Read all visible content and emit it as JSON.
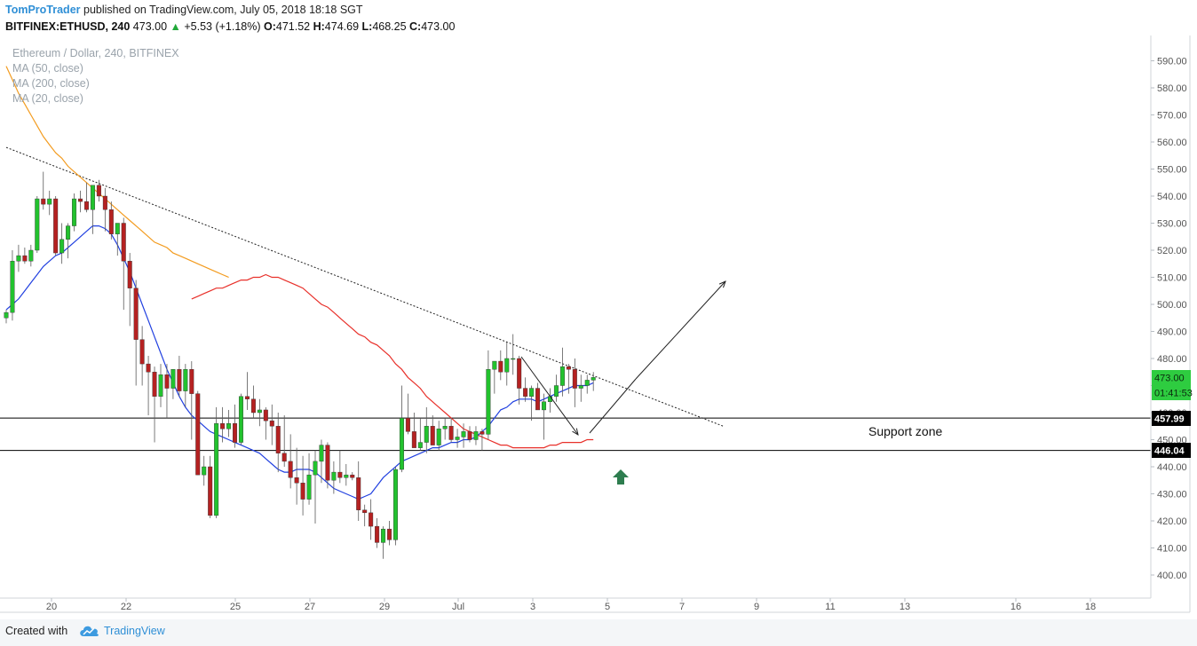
{
  "header": {
    "author": "TomProTrader",
    "published": " published on TradingView.com, July 05, 2018 18:18 SGT",
    "symbol": "BITFINEX:ETHUSD, 240",
    "last": " 473.00 ",
    "change_arrow": "▲",
    "change": " +5.53 (+1.18%)",
    "o_label": " O:",
    "o_value": "471.52",
    "h_label": " H:",
    "h_value": "474.69",
    "l_label": " L:",
    "l_value": "468.25",
    "c_label": " C:",
    "c_value": "473.00"
  },
  "legend": {
    "title": "Ethereum / Dollar, 240, BITFINEX",
    "ma50": "MA (50, close)",
    "ma200": "MA (200, close)",
    "ma20": "MA (20, close)"
  },
  "annotations": {
    "support_label": "Support zone"
  },
  "price_labels": {
    "current": "473.00",
    "countdown": "01:41:53",
    "support_top": "457.99",
    "support_bottom": "446.04"
  },
  "footer": {
    "created_with": "Created with",
    "brand": "TradingView"
  },
  "colors": {
    "bull": "#22c22e",
    "bear": "#b52121",
    "ma20": "#2140e0",
    "ma50": "#e8302a",
    "ma200": "#f39c20",
    "price_badge": "#2ecc40",
    "arrow_green": "#2e7d4f"
  },
  "chart_data": {
    "type": "candlestick",
    "y_axis": {
      "range": [
        394,
        596
      ],
      "ticks": [
        "590.00",
        "580.00",
        "570.00",
        "560.00",
        "550.00",
        "540.00",
        "530.00",
        "520.00",
        "510.00",
        "500.00",
        "490.00",
        "480.00",
        "470.00",
        "460.00",
        "450.00",
        "440.00",
        "430.00",
        "420.00",
        "410.00",
        "400.00"
      ]
    },
    "x_axis": {
      "ticks": [
        "20",
        "22",
        "25",
        "27",
        "29",
        "Jul",
        "3",
        "5",
        "7",
        "9",
        "11",
        "13",
        "16",
        "18"
      ]
    },
    "candles": [
      [
        495,
        498,
        493,
        497
      ],
      [
        497,
        520,
        494,
        516
      ],
      [
        516,
        522,
        512,
        518
      ],
      [
        518,
        521,
        515,
        516
      ],
      [
        516,
        522,
        514,
        520
      ],
      [
        520,
        540,
        519,
        539
      ],
      [
        539,
        549,
        535,
        537
      ],
      [
        537,
        542,
        533,
        539
      ],
      [
        539,
        540,
        518,
        519
      ],
      [
        519,
        530,
        515,
        524
      ],
      [
        524,
        530,
        517,
        529
      ],
      [
        529,
        541,
        527,
        539
      ],
      [
        539,
        542,
        534,
        538
      ],
      [
        538,
        545,
        534,
        535
      ],
      [
        535,
        543,
        526,
        544
      ],
      [
        544,
        546,
        538,
        540
      ],
      [
        540,
        543,
        527,
        535
      ],
      [
        535,
        538,
        524,
        526
      ],
      [
        526,
        530,
        518,
        530
      ],
      [
        530,
        532,
        498,
        516
      ],
      [
        516,
        519,
        492,
        506
      ],
      [
        506,
        509,
        470,
        487
      ],
      [
        487,
        492,
        470,
        478
      ],
      [
        478,
        481,
        459,
        475
      ],
      [
        475,
        477,
        449,
        466
      ],
      [
        466,
        478,
        462,
        474
      ],
      [
        474,
        478,
        458,
        469
      ],
      [
        469,
        476,
        465,
        476
      ],
      [
        476,
        481,
        466,
        468
      ],
      [
        468,
        478,
        462,
        476
      ],
      [
        476,
        479,
        450,
        467
      ],
      [
        467,
        468,
        437,
        437
      ],
      [
        437,
        444,
        433,
        440
      ],
      [
        440,
        444,
        421,
        422
      ],
      [
        422,
        462,
        421,
        456
      ],
      [
        456,
        462,
        449,
        454
      ],
      [
        454,
        461,
        451,
        456
      ],
      [
        456,
        463,
        447,
        449
      ],
      [
        449,
        467,
        448,
        466
      ],
      [
        466,
        475,
        461,
        465
      ],
      [
        465,
        470,
        458,
        460
      ],
      [
        460,
        465,
        455,
        461
      ],
      [
        461,
        462,
        450,
        457
      ],
      [
        457,
        463,
        448,
        455
      ],
      [
        455,
        460,
        438,
        445
      ],
      [
        445,
        459,
        440,
        442
      ],
      [
        442,
        452,
        432,
        436
      ],
      [
        436,
        447,
        426,
        434
      ],
      [
        434,
        444,
        422,
        428
      ],
      [
        428,
        445,
        426,
        437
      ],
      [
        437,
        446,
        419,
        442
      ],
      [
        442,
        450,
        434,
        448
      ],
      [
        448,
        449,
        432,
        435
      ],
      [
        435,
        442,
        430,
        438
      ],
      [
        438,
        446,
        434,
        436
      ],
      [
        436,
        441,
        433,
        437
      ],
      [
        437,
        438,
        435,
        436
      ],
      [
        436,
        442,
        420,
        424
      ],
      [
        424,
        426,
        418,
        423
      ],
      [
        423,
        428,
        413,
        418
      ],
      [
        418,
        421,
        410,
        412
      ],
      [
        412,
        418,
        406,
        417
      ],
      [
        417,
        420,
        411,
        413
      ],
      [
        413,
        440,
        411,
        439
      ],
      [
        439,
        470,
        438,
        458
      ],
      [
        458,
        467,
        452,
        453
      ],
      [
        453,
        460,
        448,
        447
      ],
      [
        447,
        458,
        446,
        449
      ],
      [
        449,
        462,
        445,
        455
      ],
      [
        455,
        459,
        448,
        448
      ],
      [
        448,
        457,
        446,
        454
      ],
      [
        454,
        458,
        450,
        455
      ],
      [
        455,
        458,
        449,
        450
      ],
      [
        450,
        454,
        447,
        451
      ],
      [
        451,
        456,
        447,
        453
      ],
      [
        453,
        455,
        449,
        450
      ],
      [
        450,
        455,
        448,
        453
      ],
      [
        453,
        454,
        446,
        452
      ],
      [
        452,
        483,
        450,
        476
      ],
      [
        476,
        479,
        467,
        479
      ],
      [
        479,
        483,
        472,
        475
      ],
      [
        475,
        486,
        470,
        480
      ],
      [
        480,
        489,
        474,
        480
      ],
      [
        480,
        481,
        463,
        469
      ],
      [
        469,
        473,
        464,
        466
      ],
      [
        466,
        470,
        457,
        469
      ],
      [
        469,
        471,
        463,
        461
      ],
      [
        461,
        467,
        450,
        464
      ],
      [
        464,
        469,
        460,
        466
      ],
      [
        466,
        474,
        464,
        470
      ],
      [
        470,
        484,
        466,
        477
      ],
      [
        477,
        478,
        467,
        476
      ],
      [
        476,
        480,
        462,
        469
      ],
      [
        469,
        474,
        464,
        470
      ],
      [
        470,
        474,
        467,
        472
      ],
      [
        472,
        475,
        468,
        473
      ]
    ],
    "ma20": [
      498,
      500,
      502,
      505,
      508,
      511,
      514,
      516,
      518,
      519,
      521,
      523,
      525,
      527,
      529,
      529,
      528,
      526,
      522,
      517,
      512,
      506,
      500,
      494,
      488,
      482,
      476,
      471,
      466,
      462,
      459,
      457,
      455,
      453,
      452,
      451,
      450,
      449,
      448,
      447,
      446,
      445,
      443,
      441,
      439,
      438,
      438,
      439,
      439,
      439,
      438,
      436,
      434,
      432,
      431,
      430,
      429,
      428,
      429,
      430,
      433,
      436,
      438,
      440,
      442,
      443,
      444,
      445,
      446,
      447,
      447,
      448,
      449,
      449,
      450,
      450,
      451,
      453,
      455,
      458,
      461,
      462,
      464,
      465,
      465,
      465,
      464,
      465,
      466,
      467,
      468,
      469,
      470,
      470,
      470,
      471
    ],
    "ma50": [
      502,
      503,
      504,
      505,
      506,
      506,
      507,
      508,
      509,
      509,
      510,
      510,
      511,
      510,
      510,
      509,
      508,
      507,
      506,
      504,
      502,
      500,
      499,
      497,
      495,
      493,
      491,
      489,
      488,
      486,
      485,
      483,
      481,
      478,
      476,
      473,
      471,
      469,
      466,
      464,
      462,
      460,
      458,
      456,
      454,
      453,
      452,
      451,
      450,
      449,
      448,
      448,
      447,
      447,
      447,
      447,
      447,
      447,
      448,
      448,
      449,
      449,
      449,
      449,
      450,
      450
    ],
    "ma200": [
      588,
      583,
      578,
      574,
      570,
      566,
      562,
      559,
      556,
      554,
      551,
      549,
      547,
      545,
      543,
      541,
      539,
      537,
      535,
      533,
      531,
      529,
      527,
      525,
      523,
      522,
      521,
      519,
      518,
      517,
      516,
      515,
      514,
      513,
      512,
      511,
      510
    ],
    "trendline": {
      "from": [
        0,
        558
      ],
      "to": [
        116,
        455
      ]
    },
    "support_zone": {
      "top": 457.99,
      "bottom": 446.04,
      "label": "Support zone"
    },
    "current_price": 473.0
  }
}
